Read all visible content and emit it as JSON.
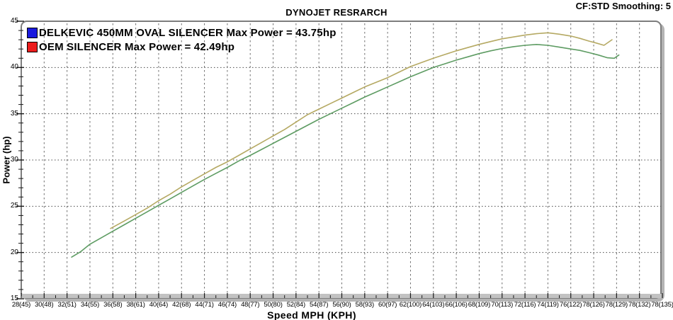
{
  "header": {
    "title": "DYNOJET RESRARCH",
    "smoothing_label": "CF:STD Smoothing: 5"
  },
  "legend": [
    {
      "label": "DELKEVIC 450MM OVAL SILENCER Max Power = 43.75hp",
      "swatch_color": "#1a1ade",
      "curve_color": "#b5a963"
    },
    {
      "label": "OEM SILENCER Max Power = 42.49hp",
      "swatch_color": "#ec1c1c",
      "curve_color": "#5e9c63"
    }
  ],
  "chart_data": {
    "type": "line",
    "title": "DYNOJET RESRARCH",
    "xlabel": "Speed MPH (KPH)",
    "ylabel": "Power (hp)",
    "ylim": [
      15,
      45
    ],
    "yticks": [
      15,
      20,
      25,
      30,
      35,
      40,
      45
    ],
    "grid": "dashed vertical line at every x tick; dotted horizontal line at 20,25,30,35,40",
    "legend_position": "top-left",
    "x_unit": "x values of points are tick indices 0-28 mapping onto xtick_labels",
    "xtick_labels": [
      "28(45)",
      "30(48)",
      "32(51)",
      "34(55)",
      "36(58)",
      "38(61)",
      "40(64)",
      "42(68)",
      "44(71)",
      "46(74)",
      "48(77)",
      "50(80)",
      "52(84)",
      "54(87)",
      "56(90)",
      "58(93)",
      "60(97)",
      "62(100)",
      "64(103)",
      "66(106)",
      "68(109)",
      "70(113)",
      "72(116)",
      "74(119)",
      "76(122)",
      "78(126)",
      "78(129)",
      "78(132)",
      "78(135)"
    ],
    "series": [
      {
        "name": "DELKEVIC 450MM OVAL SILENCER",
        "max_power_hp": 43.75,
        "color": "#b5a963",
        "points": [
          [
            3.9,
            22.6
          ],
          [
            4.5,
            23.4
          ],
          [
            5,
            24.1
          ],
          [
            5.5,
            24.8
          ],
          [
            6,
            25.6
          ],
          [
            6.5,
            26.3
          ],
          [
            7,
            27.1
          ],
          [
            7.5,
            27.8
          ],
          [
            8,
            28.5
          ],
          [
            8.5,
            29.2
          ],
          [
            9,
            29.8
          ],
          [
            9.5,
            30.5
          ],
          [
            10,
            31.2
          ],
          [
            10.5,
            31.9
          ],
          [
            11,
            32.6
          ],
          [
            11.5,
            33.3
          ],
          [
            12,
            34.1
          ],
          [
            12.5,
            34.9
          ],
          [
            13,
            35.5
          ],
          [
            13.5,
            36.1
          ],
          [
            14,
            36.7
          ],
          [
            14.5,
            37.3
          ],
          [
            15,
            37.9
          ],
          [
            15.5,
            38.4
          ],
          [
            16,
            38.9
          ],
          [
            16.5,
            39.5
          ],
          [
            17,
            40.1
          ],
          [
            17.5,
            40.55
          ],
          [
            18,
            41.0
          ],
          [
            18.5,
            41.4
          ],
          [
            19,
            41.8
          ],
          [
            19.5,
            42.15
          ],
          [
            20,
            42.5
          ],
          [
            20.5,
            42.8
          ],
          [
            21,
            43.1
          ],
          [
            21.5,
            43.3
          ],
          [
            22,
            43.5
          ],
          [
            22.5,
            43.65
          ],
          [
            23,
            43.75
          ],
          [
            23.5,
            43.6
          ],
          [
            24,
            43.4
          ],
          [
            24.4,
            43.15
          ],
          [
            24.8,
            42.85
          ],
          [
            25.1,
            42.65
          ],
          [
            25.45,
            42.4
          ],
          [
            25.8,
            43.0
          ]
        ]
      },
      {
        "name": "OEM SILENCER",
        "max_power_hp": 42.49,
        "color": "#5e9c63",
        "points": [
          [
            2.2,
            19.5
          ],
          [
            2.6,
            20.1
          ],
          [
            3,
            20.9
          ],
          [
            3.5,
            21.6
          ],
          [
            4,
            22.3
          ],
          [
            4.5,
            23.0
          ],
          [
            5,
            23.7
          ],
          [
            5.5,
            24.4
          ],
          [
            6,
            25.1
          ],
          [
            6.5,
            25.8
          ],
          [
            7,
            26.5
          ],
          [
            7.5,
            27.2
          ],
          [
            8,
            27.9
          ],
          [
            8.5,
            28.55
          ],
          [
            9,
            29.2
          ],
          [
            9.5,
            29.9
          ],
          [
            10,
            30.5
          ],
          [
            10.5,
            31.15
          ],
          [
            11,
            31.8
          ],
          [
            11.5,
            32.45
          ],
          [
            12,
            33.1
          ],
          [
            12.5,
            33.75
          ],
          [
            13,
            34.4
          ],
          [
            13.5,
            35.0
          ],
          [
            14,
            35.6
          ],
          [
            14.5,
            36.2
          ],
          [
            15,
            36.8
          ],
          [
            15.5,
            37.35
          ],
          [
            16,
            37.9
          ],
          [
            16.5,
            38.45
          ],
          [
            17,
            39.0
          ],
          [
            17.5,
            39.5
          ],
          [
            18,
            40.0
          ],
          [
            18.5,
            40.4
          ],
          [
            19,
            40.8
          ],
          [
            19.5,
            41.15
          ],
          [
            20,
            41.5
          ],
          [
            20.5,
            41.8
          ],
          [
            21,
            42.05
          ],
          [
            21.5,
            42.25
          ],
          [
            22,
            42.4
          ],
          [
            22.5,
            42.49
          ],
          [
            23,
            42.4
          ],
          [
            23.5,
            42.2
          ],
          [
            24,
            42.0
          ],
          [
            24.4,
            41.85
          ],
          [
            24.8,
            41.6
          ],
          [
            25.2,
            41.35
          ],
          [
            25.6,
            41.05
          ],
          [
            25.9,
            41.0
          ],
          [
            26.1,
            41.35
          ]
        ]
      }
    ]
  },
  "style": {
    "vertical_gridline_color": "#6e6e6e",
    "horizontal_gridline_color": "#4a4a4a",
    "axis_band_color": "#c2c2c2",
    "tick_mark_color": "#1a1a1a"
  }
}
